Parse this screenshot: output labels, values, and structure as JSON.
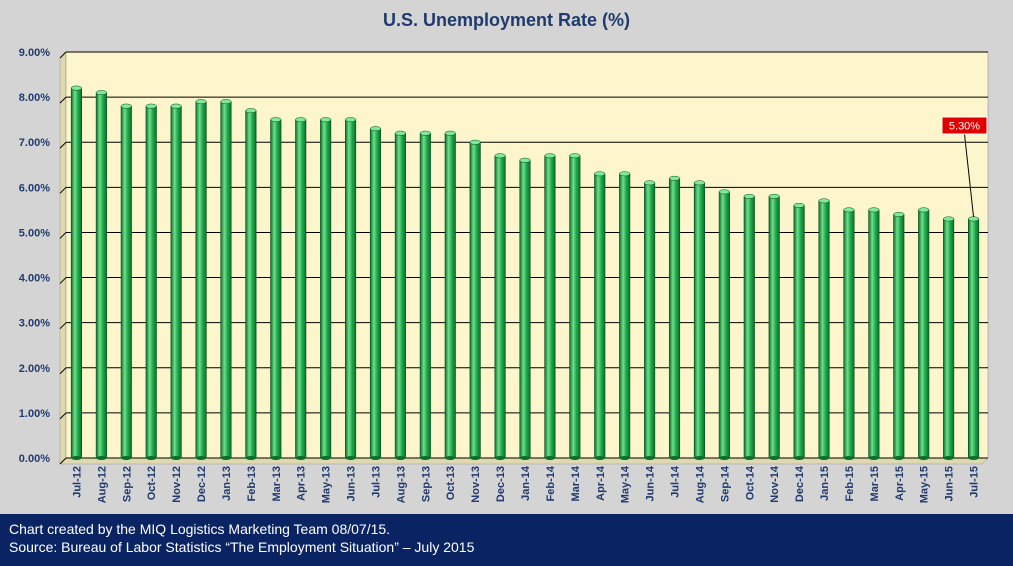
{
  "chart_data": {
    "type": "bar",
    "title": "U.S. Unemployment Rate (%)",
    "xlabel": "",
    "ylabel": "",
    "ylim": [
      0,
      9
    ],
    "y_ticks": [
      "0.00%",
      "1.00%",
      "2.00%",
      "3.00%",
      "4.00%",
      "5.00%",
      "6.00%",
      "7.00%",
      "8.00%",
      "9.00%"
    ],
    "grid": true,
    "categories": [
      "Jul-12",
      "Aug-12",
      "Sep-12",
      "Oct-12",
      "Nov-12",
      "Dec-12",
      "Jan-13",
      "Feb-13",
      "Mar-13",
      "Apr-13",
      "May-13",
      "Jun-13",
      "Jul-13",
      "Aug-13",
      "Sep-13",
      "Oct-13",
      "Nov-13",
      "Dec-13",
      "Jan-14",
      "Feb-14",
      "Mar-14",
      "Apr-14",
      "May-14",
      "Jun-14",
      "Jul-14",
      "Aug-14",
      "Sep-14",
      "Oct-14",
      "Nov-14",
      "Dec-14",
      "Jan-15",
      "Feb-15",
      "Mar-15",
      "Apr-15",
      "May-15",
      "Jun-15",
      "Jul-15"
    ],
    "values": [
      8.2,
      8.1,
      7.8,
      7.8,
      7.8,
      7.9,
      7.9,
      7.7,
      7.5,
      7.5,
      7.5,
      7.5,
      7.3,
      7.2,
      7.2,
      7.2,
      7.0,
      6.7,
      6.6,
      6.7,
      6.7,
      6.3,
      6.3,
      6.1,
      6.2,
      6.1,
      5.9,
      5.8,
      5.8,
      5.6,
      5.7,
      5.5,
      5.5,
      5.4,
      5.5,
      5.3,
      5.3
    ],
    "annotation": {
      "category": "Jul-15",
      "label": "5.30%"
    },
    "colors": {
      "bar": "#1fa84a",
      "bar_highlight": "#6fe08a",
      "bar_dark": "#0c6e2c",
      "plot_bg": "#fdf6cc",
      "grid": "#000000",
      "callout_bg": "#e00000"
    }
  },
  "footer": {
    "line1": "Chart created by the MIQ Logistics Marketing Team 08/07/15.",
    "line2": "Source: Bureau of Labor Statistics “The Employment Situation” – July 2015"
  }
}
